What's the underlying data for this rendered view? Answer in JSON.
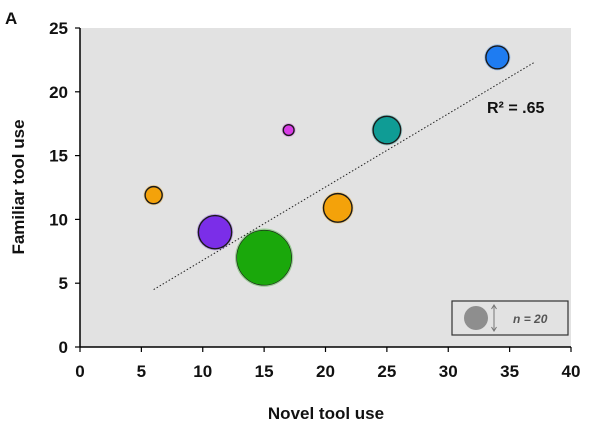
{
  "chart_data": {
    "type": "scatter",
    "panel_label": "A",
    "xlabel": "Novel tool use",
    "ylabel": "Familiar tool use",
    "xlim": [
      0,
      40
    ],
    "ylim": [
      0,
      25
    ],
    "xticks": [
      0,
      5,
      10,
      15,
      20,
      25,
      30,
      35,
      40
    ],
    "yticks": [
      0,
      5,
      10,
      15,
      20,
      25
    ],
    "grid": false,
    "background": "#e2e2e2",
    "annotation": "R² = .65",
    "trendline": {
      "x": [
        6,
        37
      ],
      "y": [
        4.5,
        22.3
      ],
      "style": "dotted"
    },
    "points": [
      {
        "x": 34,
        "y": 22.7,
        "n": 4.5,
        "color": "#1e7cf2"
      },
      {
        "x": 25,
        "y": 17,
        "n": 6.5,
        "color": "#0f9c95"
      },
      {
        "x": 17,
        "y": 17,
        "n": 1,
        "color": "#d83de6"
      },
      {
        "x": 6,
        "y": 11.9,
        "n": 2.5,
        "color": "#f4a20a"
      },
      {
        "x": 21,
        "y": 10.9,
        "n": 7,
        "color": "#f4a20a"
      },
      {
        "x": 11,
        "y": 9,
        "n": 9.5,
        "color": "#7b2ee8"
      },
      {
        "x": 15,
        "y": 7,
        "n": 26,
        "color": "#1aa80b"
      }
    ],
    "size_legend": {
      "label_prefix": "n",
      "label": "= 20",
      "n": 20,
      "color": "#8e8e8e"
    }
  }
}
